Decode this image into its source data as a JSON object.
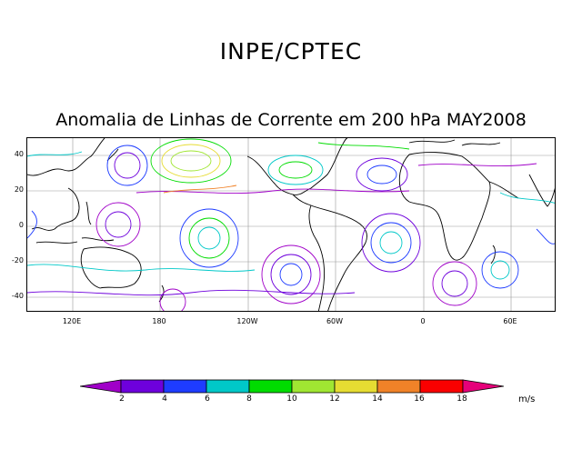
{
  "org_title": "INPE/CPTEC",
  "map_title": "Anomalia de Linhas de Corrente em 200 hPa MAY2008",
  "lat_labels": [
    "40",
    "20",
    "0",
    "-20",
    "-40"
  ],
  "lon_labels": [
    "120E",
    "180",
    "120W",
    "60W",
    "0",
    "60E"
  ],
  "colorbar": {
    "labels": [
      "2",
      "4",
      "6",
      "8",
      "10",
      "12",
      "14",
      "16",
      "18"
    ],
    "colors": [
      "#a000c8",
      "#6e00dc",
      "#1e3cff",
      "#00c8c8",
      "#00dc00",
      "#a0e632",
      "#e6dc32",
      "#f08228",
      "#fa0000",
      "#e6007a"
    ],
    "units": "m/s"
  }
}
